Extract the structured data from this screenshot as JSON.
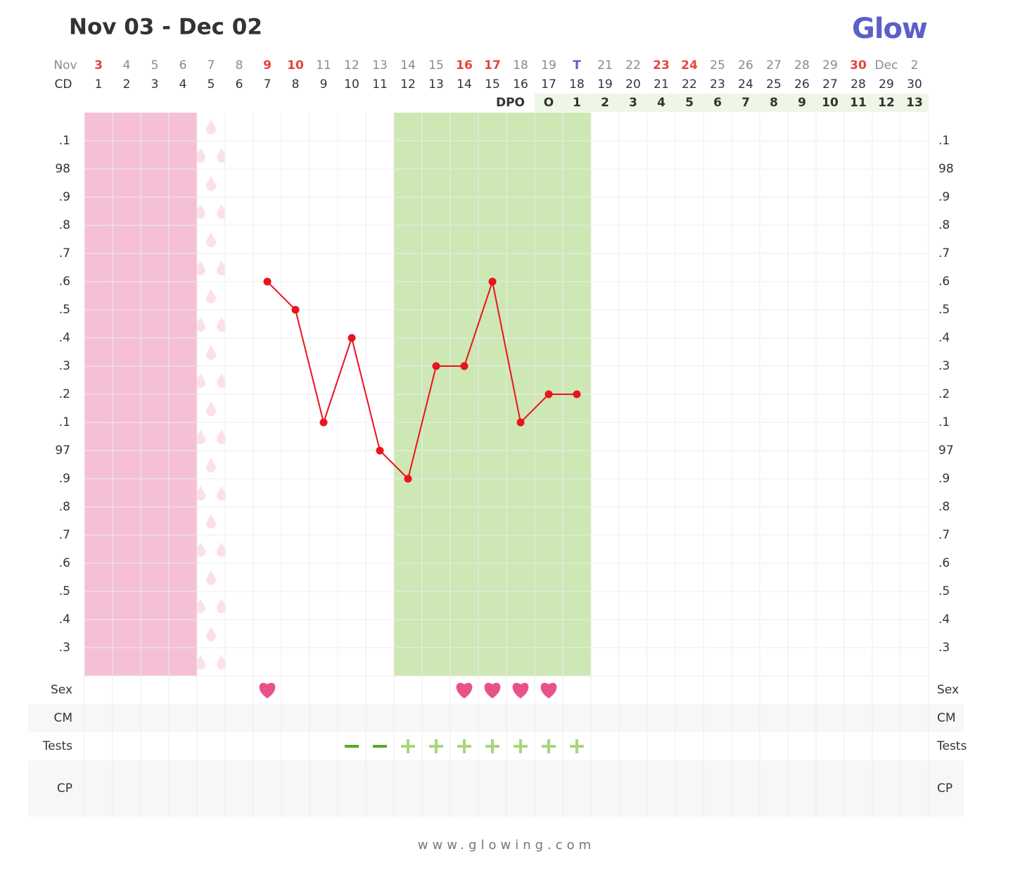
{
  "brand": "Glow",
  "footer": "www.glowing.com",
  "chart_data": {
    "type": "line",
    "title": "Nov 03 - Dec 02",
    "row_labels": {
      "month": "Nov",
      "cd": "CD",
      "dpo": "DPO",
      "sex": "Sex",
      "cm": "CM",
      "tests": "Tests",
      "cp": "CP"
    },
    "categories": [
      "3",
      "4",
      "5",
      "6",
      "7",
      "8",
      "9",
      "10",
      "11",
      "12",
      "13",
      "14",
      "15",
      "16",
      "17",
      "18",
      "19",
      "T",
      "21",
      "22",
      "23",
      "24",
      "25",
      "26",
      "27",
      "28",
      "29",
      "30",
      "Dec",
      "2"
    ],
    "category_colors": [
      "#e8443a",
      "#8a8a8a",
      "#8a8a8a",
      "#8a8a8a",
      "#8a8a8a",
      "#8a8a8a",
      "#e8443a",
      "#e8443a",
      "#8a8a8a",
      "#8a8a8a",
      "#8a8a8a",
      "#8a8a8a",
      "#8a8a8a",
      "#e8443a",
      "#e8443a",
      "#8a8a8a",
      "#8a8a8a",
      "#5b5fc7",
      "#8a8a8a",
      "#8a8a8a",
      "#e8443a",
      "#e8443a",
      "#8a8a8a",
      "#8a8a8a",
      "#8a8a8a",
      "#8a8a8a",
      "#8a8a8a",
      "#e8443a",
      "#8a8a8a",
      "#8a8a8a"
    ],
    "cycle_days": [
      1,
      2,
      3,
      4,
      5,
      6,
      7,
      8,
      9,
      10,
      11,
      12,
      13,
      14,
      15,
      16,
      17,
      18,
      19,
      20,
      21,
      22,
      23,
      24,
      25,
      26,
      27,
      28,
      29,
      30
    ],
    "dpo": [
      null,
      null,
      null,
      null,
      null,
      null,
      null,
      null,
      null,
      null,
      null,
      null,
      null,
      null,
      null,
      null,
      "O",
      1,
      2,
      3,
      4,
      5,
      6,
      7,
      8,
      9,
      10,
      11,
      12,
      13
    ],
    "values": [
      null,
      null,
      null,
      null,
      null,
      null,
      97.6,
      97.5,
      97.1,
      97.4,
      97.0,
      96.9,
      97.3,
      97.3,
      97.6,
      97.1,
      97.2,
      97.2,
      null,
      null,
      null,
      null,
      null,
      null,
      null,
      null,
      null,
      null,
      null,
      null
    ],
    "color": "#e8141b",
    "ylim": [
      96.2,
      98.2
    ],
    "yticks": [
      {
        "value": 98.1,
        "label": ".1"
      },
      98,
      {
        "value": 97.9,
        "label": ".9"
      },
      {
        "value": 97.8,
        "label": ".8"
      },
      {
        "value": 97.7,
        "label": ".7"
      },
      {
        "value": 97.6,
        "label": ".6"
      },
      {
        "value": 97.5,
        "label": ".5"
      },
      {
        "value": 97.4,
        "label": ".4"
      },
      {
        "value": 97.3,
        "label": ".3"
      },
      {
        "value": 97.2,
        "label": ".2"
      },
      {
        "value": 97.1,
        "label": ".1"
      },
      97,
      {
        "value": 96.9,
        "label": ".9"
      },
      {
        "value": 96.8,
        "label": ".8"
      },
      {
        "value": 96.7,
        "label": ".7"
      },
      {
        "value": 96.6,
        "label": ".6"
      },
      {
        "value": 96.5,
        "label": ".5"
      },
      {
        "value": 96.4,
        "label": ".4"
      },
      {
        "value": 96.3,
        "label": ".3"
      }
    ],
    "grid": true,
    "period": [
      true,
      true,
      true,
      true,
      false,
      false,
      false,
      false,
      false,
      false,
      false,
      false,
      false,
      false,
      false,
      false,
      false,
      false,
      false,
      false,
      false,
      false,
      false,
      false,
      false,
      false,
      false,
      false,
      false,
      false
    ],
    "period_color": "#f5c0d5",
    "spotting": [
      false,
      false,
      false,
      false,
      true,
      false,
      false,
      false,
      false,
      false,
      false,
      false,
      false,
      false,
      false,
      false,
      false,
      false,
      false,
      false,
      false,
      false,
      false,
      false,
      false,
      false,
      false,
      false,
      false,
      false
    ],
    "spotting_color": "#fbe0ea",
    "fertile": [
      false,
      false,
      false,
      false,
      false,
      false,
      false,
      false,
      false,
      false,
      false,
      true,
      true,
      true,
      true,
      true,
      true,
      true,
      false,
      false,
      false,
      false,
      false,
      false,
      false,
      false,
      false,
      false,
      false,
      false
    ],
    "fertile_color": "#cde7b5",
    "sex": [
      false,
      false,
      false,
      false,
      false,
      false,
      true,
      false,
      false,
      false,
      false,
      false,
      false,
      true,
      true,
      true,
      true,
      false,
      false,
      false,
      false,
      false,
      false,
      false,
      false,
      false,
      false,
      false,
      false,
      false
    ],
    "sex_color": "#e8528a",
    "tests": [
      null,
      null,
      null,
      null,
      null,
      null,
      null,
      null,
      null,
      "negative",
      "negative",
      "positive",
      "positive",
      "positive",
      "positive",
      "positive",
      "positive",
      "positive",
      null,
      null,
      null,
      null,
      null,
      null,
      null,
      null,
      null,
      null,
      null,
      null
    ],
    "test_colors": {
      "negative": "#5aa82a",
      "positive": "#a7d67e"
    }
  }
}
